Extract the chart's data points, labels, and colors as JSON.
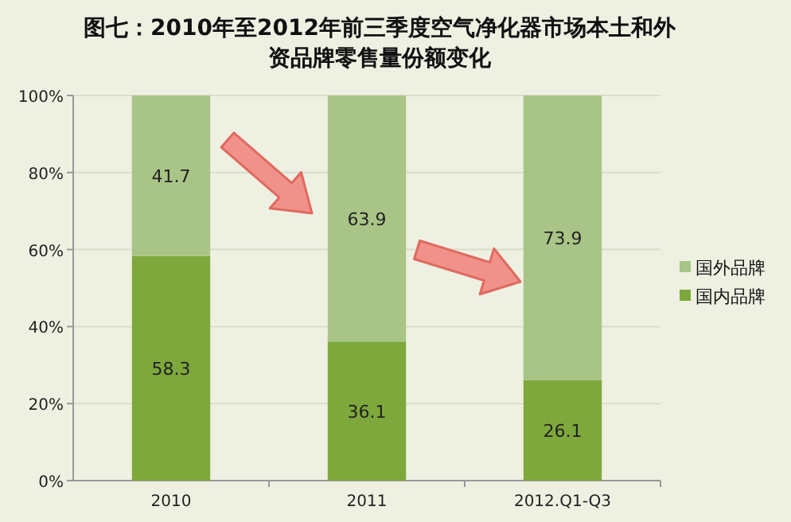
{
  "chart_data": {
    "type": "bar",
    "stacked": true,
    "title": "图七：2010年至2012年前三季度空气净化器市场本土和外资品牌零售量份额变化",
    "categories": [
      "2010",
      "2011",
      "2012.Q1-Q3"
    ],
    "series": [
      {
        "name": "国内品牌",
        "color": "#7ea83c",
        "values": [
          58.3,
          36.1,
          26.1
        ]
      },
      {
        "name": "国外品牌",
        "color": "#a9c487",
        "values": [
          41.7,
          63.9,
          73.9
        ]
      }
    ],
    "ylim": [
      0,
      100
    ],
    "yticks": [
      {
        "value": 0,
        "label": "0%"
      },
      {
        "value": 20,
        "label": "20%"
      },
      {
        "value": 40,
        "label": "40%"
      },
      {
        "value": 60,
        "label": "60%"
      },
      {
        "value": 80,
        "label": "80%"
      },
      {
        "value": 100,
        "label": "100%"
      }
    ],
    "grid": "y",
    "legend": "right",
    "data_labels": true
  }
}
